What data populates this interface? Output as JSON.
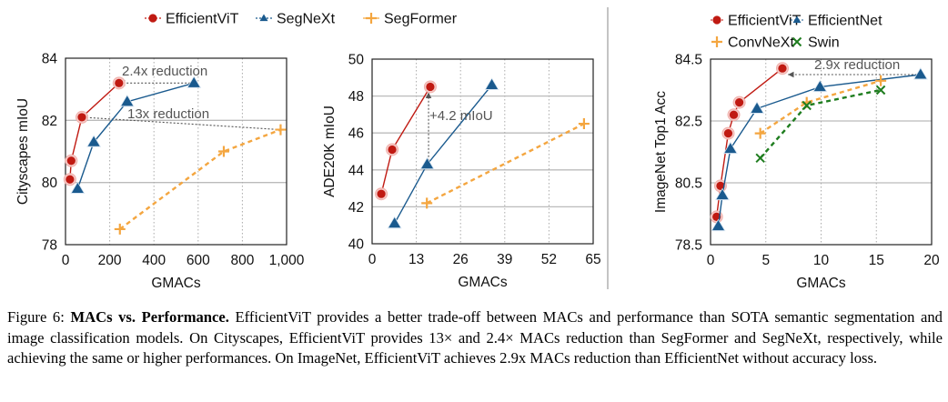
{
  "colors": {
    "EfficientViT": "#c01a12",
    "SegNeXt": "#1a5a8e",
    "SegFormer": "#f4a640",
    "EfficientNet": "#1a5a8e",
    "ConvNeXt": "#f4a640",
    "Swin": "#1f7d1f"
  },
  "legend_top": [
    "EfficientViT",
    "SegNeXt",
    "SegFormer"
  ],
  "legend_right": [
    "EfficientViT",
    "EfficientNet",
    "ConvNeXt",
    "Swin"
  ],
  "chart_data": [
    {
      "type": "line",
      "xlabel": "GMACs",
      "ylabel": "Cityscapes mIoU",
      "xlim": [
        0,
        1000
      ],
      "ylim": [
        78,
        84
      ],
      "xticks": [
        0,
        200,
        400,
        600,
        800,
        1000
      ],
      "xtick_labels": [
        "0",
        "200",
        "400",
        "600",
        "800",
        "1,000"
      ],
      "yticks": [
        78,
        80,
        82,
        84
      ],
      "ytick_labels": [
        "78",
        "80",
        "82",
        "84"
      ],
      "grid": {
        "horizontal": [
          80,
          82
        ],
        "vertical": [
          200,
          400,
          600,
          800
        ]
      },
      "series": [
        {
          "name": "EfficientViT",
          "marker": "circle",
          "x": [
            20,
            26,
            74,
            242
          ],
          "y": [
            80.1,
            80.7,
            82.1,
            83.2
          ]
        },
        {
          "name": "SegNeXt",
          "marker": "triangle",
          "x": [
            55,
            128,
            279,
            581
          ],
          "y": [
            79.8,
            81.3,
            82.6,
            83.2
          ]
        },
        {
          "name": "SegFormer",
          "marker": "plus",
          "dashed": true,
          "x": [
            246,
            716,
            973
          ],
          "y": [
            78.5,
            81.0,
            81.7
          ]
        }
      ],
      "annotations": [
        {
          "text": "2.4x reduction",
          "from": [
            581,
            83.2
          ],
          "to": [
            242,
            83.2
          ]
        },
        {
          "text": "13x reduction",
          "from": [
            973,
            81.7
          ],
          "to": [
            74,
            82.1
          ]
        }
      ]
    },
    {
      "type": "line",
      "xlabel": "GMACs",
      "ylabel": "ADE20K mIoU",
      "xlim": [
        0,
        65
      ],
      "ylim": [
        40,
        50
      ],
      "xticks": [
        0,
        13,
        26,
        39,
        52,
        65
      ],
      "xtick_labels": [
        "0",
        "13",
        "26",
        "39",
        "52",
        "65"
      ],
      "yticks": [
        40,
        42,
        44,
        46,
        48,
        50
      ],
      "ytick_labels": [
        "40",
        "42",
        "44",
        "46",
        "48",
        "50"
      ],
      "grid": {
        "horizontal": [
          42,
          44,
          46,
          48
        ],
        "vertical": [
          13,
          26,
          39,
          52
        ]
      },
      "series": [
        {
          "name": "EfficientViT",
          "marker": "circle",
          "x": [
            2.7,
            5.9,
            17.1
          ],
          "y": [
            42.7,
            45.1,
            48.5
          ]
        },
        {
          "name": "SegNeXt",
          "marker": "triangle",
          "x": [
            6.6,
            16.2,
            35.2
          ],
          "y": [
            41.1,
            44.3,
            48.6
          ]
        },
        {
          "name": "SegFormer",
          "marker": "plus",
          "dashed": true,
          "x": [
            16.1,
            62.3
          ],
          "y": [
            42.2,
            46.5
          ]
        }
      ],
      "annotations": [
        {
          "text": "+4.2 mIoU",
          "from": [
            16.6,
            44.3
          ],
          "to": [
            16.6,
            48.2
          ]
        }
      ]
    },
    {
      "type": "line",
      "xlabel": "GMACs",
      "ylabel": "ImageNet Top1 Acc",
      "xlim": [
        0,
        20
      ],
      "ylim": [
        78.5,
        84.5
      ],
      "xticks": [
        0,
        5,
        10,
        15,
        20
      ],
      "xtick_labels": [
        "0",
        "5",
        "10",
        "15",
        "20"
      ],
      "yticks": [
        78.5,
        80.5,
        82.5,
        84.5
      ],
      "ytick_labels": [
        "78.5",
        "80.5",
        "82.5",
        "84.5"
      ],
      "grid": {
        "horizontal": [
          80.5,
          82.5
        ],
        "vertical": [
          5,
          10,
          15
        ]
      },
      "series": [
        {
          "name": "EfficientViT",
          "marker": "circle",
          "x": [
            0.55,
            0.9,
            1.6,
            2.1,
            2.6,
            6.5
          ],
          "y": [
            79.4,
            80.4,
            82.1,
            82.7,
            83.1,
            84.2
          ]
        },
        {
          "name": "EfficientNet",
          "marker": "triangle",
          "x": [
            0.7,
            1.07,
            1.8,
            4.2,
            9.9,
            19.0
          ],
          "y": [
            79.1,
            80.1,
            81.6,
            82.9,
            83.6,
            84.0
          ]
        },
        {
          "name": "ConvNeXt",
          "marker": "plus",
          "dashed": true,
          "x": [
            4.5,
            8.7,
            15.4
          ],
          "y": [
            82.1,
            83.1,
            83.8
          ]
        },
        {
          "name": "Swin",
          "marker": "cross",
          "dashed": true,
          "x": [
            4.5,
            8.7,
            15.4
          ],
          "y": [
            81.3,
            83.0,
            83.5
          ]
        }
      ],
      "annotations": [
        {
          "text": "2.9x reduction",
          "from": [
            19.0,
            84.0
          ],
          "to": [
            7.0,
            84.0
          ]
        }
      ]
    }
  ],
  "caption": {
    "label": "Figure 6: ",
    "title": "MACs vs. Performance.",
    "body": " EfficientViT provides a better trade-off between MACs and performance than SOTA semantic segmentation and image classification models. On Cityscapes, EfficientViT provides 13× and 2.4× MACs reduction than SegFormer and SegNeXt, respectively, while achieving the same or higher performances. On ImageNet, EfficientViT achieves 2.9x MACs reduction than EfficientNet without accuracy loss."
  }
}
